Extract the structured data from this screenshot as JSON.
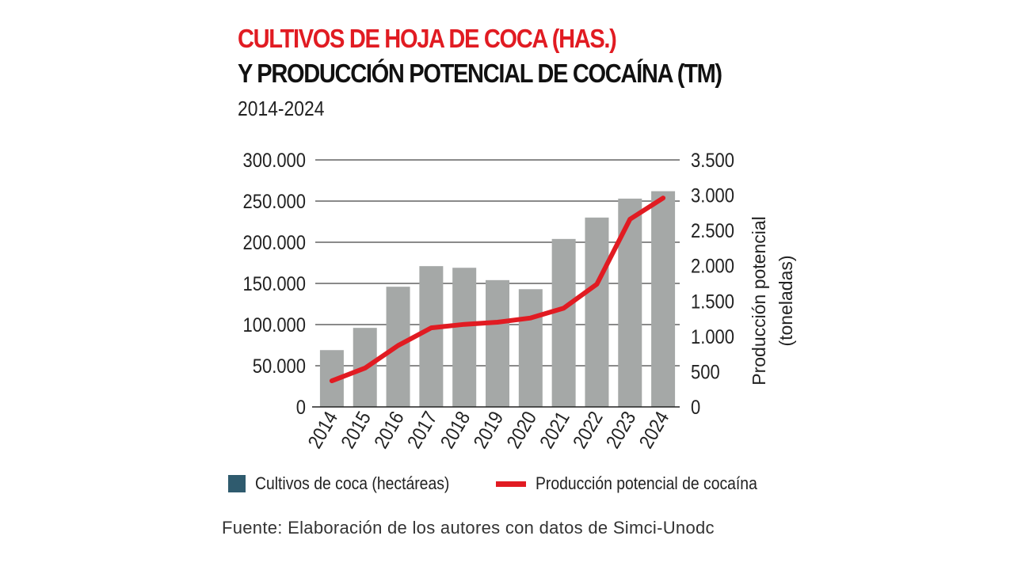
{
  "title_line1": "CULTIVOS DE HOJA DE COCA (HAS.)",
  "title_line2": "Y PRODUCCIÓN POTENCIAL DE COCAÍNA (TM)",
  "subtitle": "2014-2024",
  "source": "Fuente: Elaboración de los autores con datos de Simci-Unodc",
  "legend": {
    "bars": "Cultivos de coca (hectáreas)",
    "line": "Producción potencial de cocaína"
  },
  "colors": {
    "bar": "#a5a8a7",
    "legend_bar": "#2f5b6e",
    "line": "#e11b22",
    "title_accent": "#e11b22"
  },
  "chart_data": {
    "type": "bar",
    "categories": [
      "2014",
      "2015",
      "2016",
      "2017",
      "2018",
      "2019",
      "2020",
      "2021",
      "2022",
      "2023",
      "2024"
    ],
    "series": [
      {
        "name": "Cultivos de coca (hectáreas)",
        "type": "bar",
        "axis": "left",
        "values": [
          69000,
          96000,
          146000,
          171000,
          169000,
          154000,
          143000,
          204000,
          230000,
          253000,
          262000
        ]
      },
      {
        "name": "Producción potencial de cocaína",
        "type": "line",
        "axis": "right",
        "values": [
          370,
          550,
          870,
          1120,
          1170,
          1200,
          1260,
          1400,
          1740,
          2660,
          2960
        ]
      }
    ],
    "y_left": {
      "min": 0,
      "max": 300000,
      "ticks": [
        0,
        50000,
        100000,
        150000,
        200000,
        250000,
        300000
      ],
      "tick_labels": [
        "0",
        "50.000",
        "100.000",
        "150.000",
        "200.000",
        "250.000",
        "300.000"
      ]
    },
    "y_right": {
      "min": 0,
      "max": 3500,
      "ticks": [
        0,
        500,
        1000,
        1500,
        2000,
        2500,
        3000,
        3500
      ],
      "tick_labels": [
        "0",
        "500",
        "1.000",
        "1.500",
        "2.000",
        "2.500",
        "3.000",
        "3.500"
      ],
      "label_line1": "Producción potencial",
      "label_line2": "(toneladas)"
    },
    "grid": true,
    "legend_position": "bottom"
  }
}
